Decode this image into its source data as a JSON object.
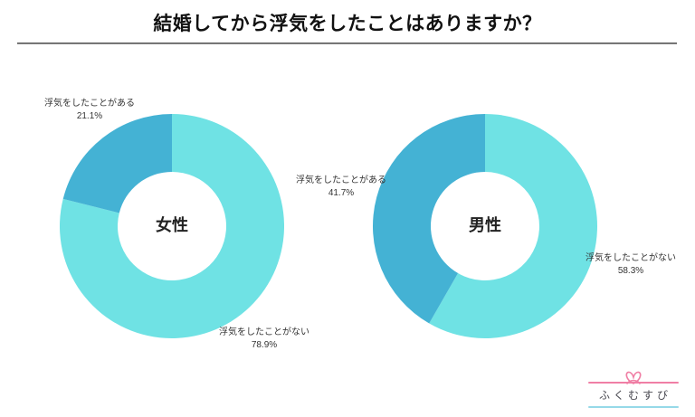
{
  "header": {
    "title": "結婚してから浮気をしたことはありますか？"
  },
  "chart_data": [
    {
      "type": "pie",
      "subtype": "donut",
      "title": "女性",
      "labels": [
        "浮気をしたことがない",
        "浮気をしたことがある"
      ],
      "values": [
        78.9,
        21.1
      ],
      "value_labels": [
        "78.9%",
        "21.1%"
      ],
      "colors": [
        "#6FE2E4",
        "#44B2D4"
      ],
      "start_angle_deg": 0,
      "direction": "clockwise",
      "legend_position": "none",
      "label_style": "external-callouts"
    },
    {
      "type": "pie",
      "subtype": "donut",
      "title": "男性",
      "labels": [
        "浮気をしたことがない",
        "浮気をしたことがある"
      ],
      "values": [
        58.3,
        41.7
      ],
      "value_labels": [
        "58.3%",
        "41.7%"
      ],
      "colors": [
        "#6FE2E4",
        "#44B2D4"
      ],
      "start_angle_deg": 0,
      "direction": "clockwise",
      "legend_position": "none",
      "label_style": "external-callouts"
    }
  ],
  "logo": {
    "text": "ふくむすび"
  },
  "theme": {
    "logo-pink": "#F07FA5",
    "logo-blue": "#96D9E8",
    "color-no": "#6FE2E4",
    "color-yes": "#44B2D4"
  }
}
